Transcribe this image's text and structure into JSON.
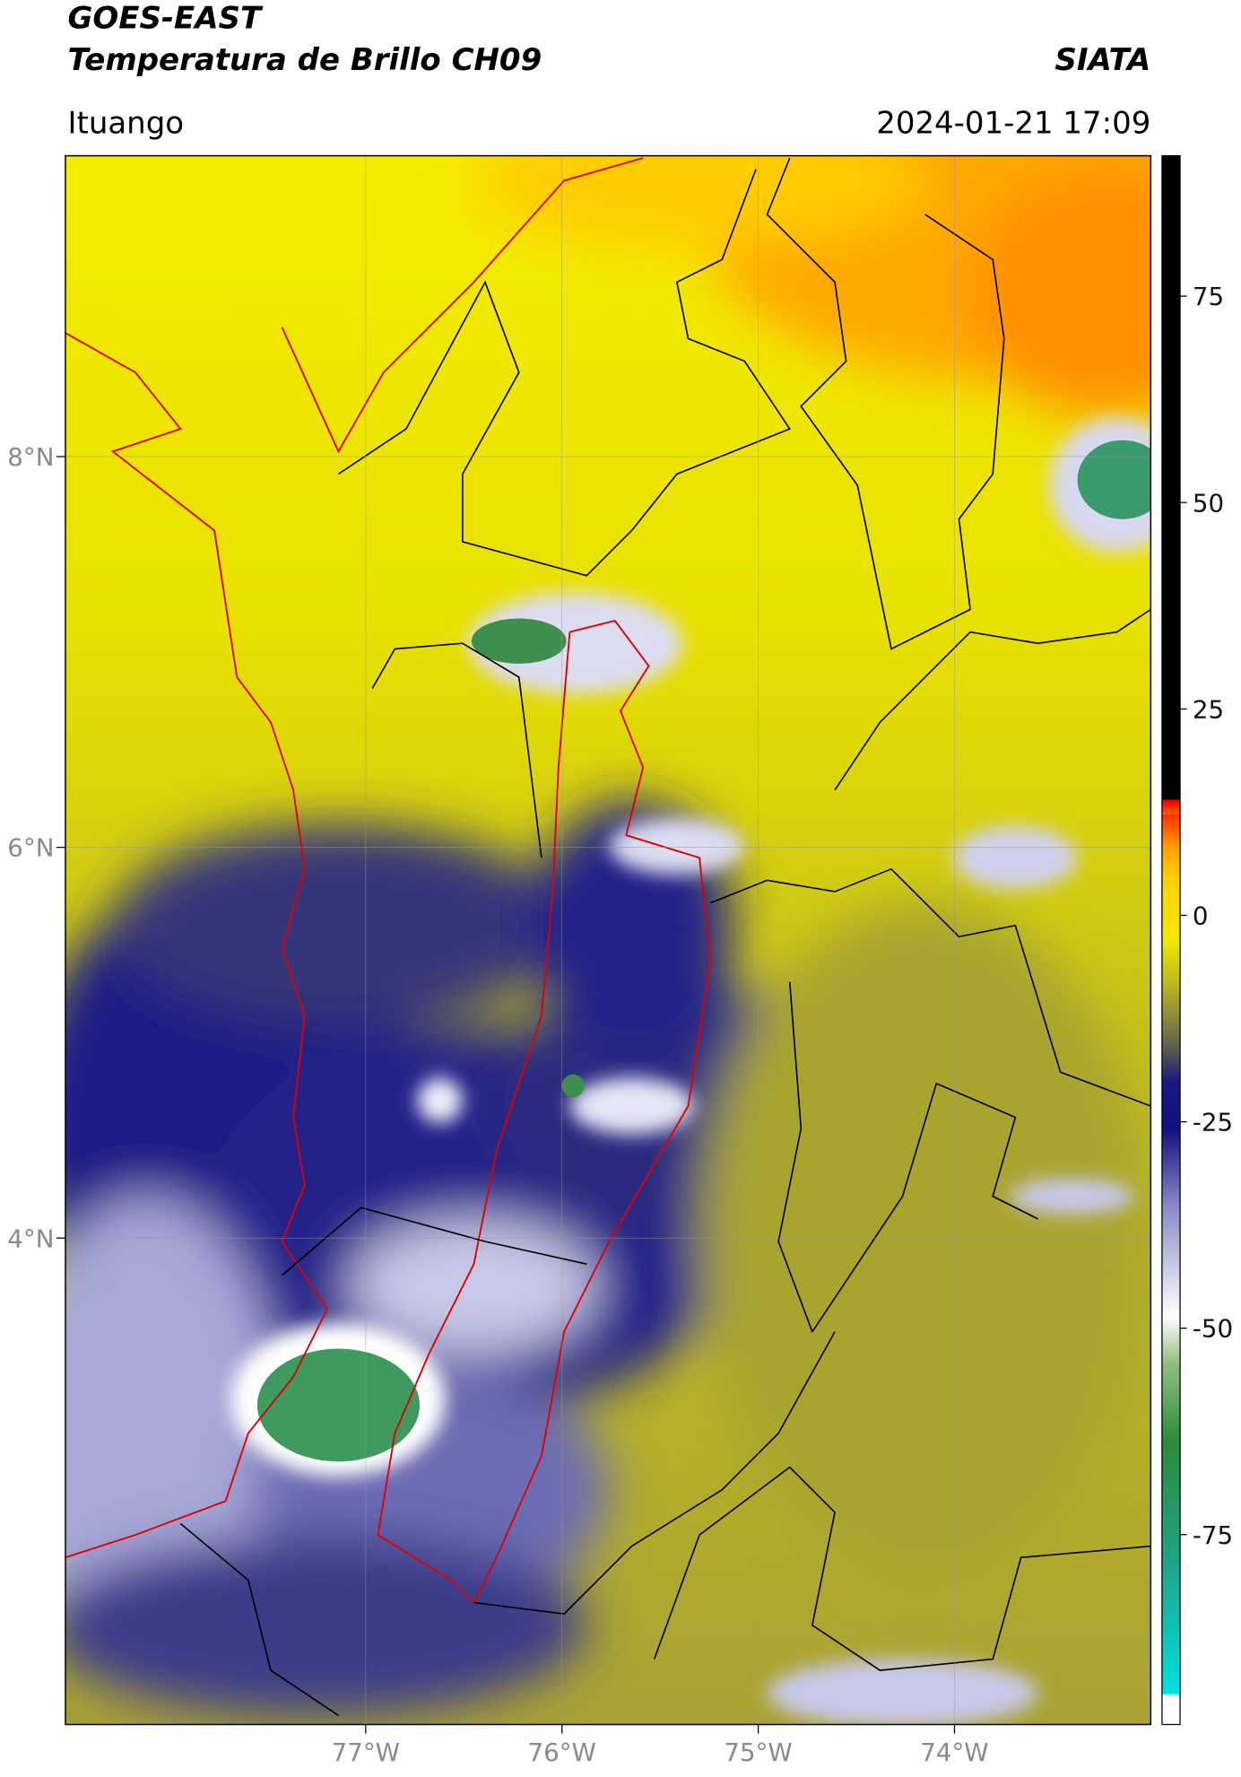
{
  "chart_data": {
    "type": "map",
    "title": "GOES-EAST",
    "subtitle": "Temperatura de Brillo CH09",
    "source": "SIATA",
    "location": "Ituango",
    "datetime": "2024-01-21 17:09",
    "xlim": [
      -78.53,
      -73.0
    ],
    "ylim": [
      1.51,
      9.54
    ],
    "xticks": [
      {
        "value": -77,
        "label": "77°W"
      },
      {
        "value": -76,
        "label": "76°W"
      },
      {
        "value": -75,
        "label": "75°W"
      },
      {
        "value": -74,
        "label": "74°W"
      }
    ],
    "yticks": [
      {
        "value": 8,
        "label": "8°N"
      },
      {
        "value": 6,
        "label": "6°N"
      },
      {
        "value": 4,
        "label": "4°N"
      }
    ],
    "grid": true,
    "colorbar": {
      "lim": [
        -98,
        92
      ],
      "ticks": [
        75,
        50,
        25,
        0,
        -25,
        -50,
        -75
      ]
    }
  }
}
